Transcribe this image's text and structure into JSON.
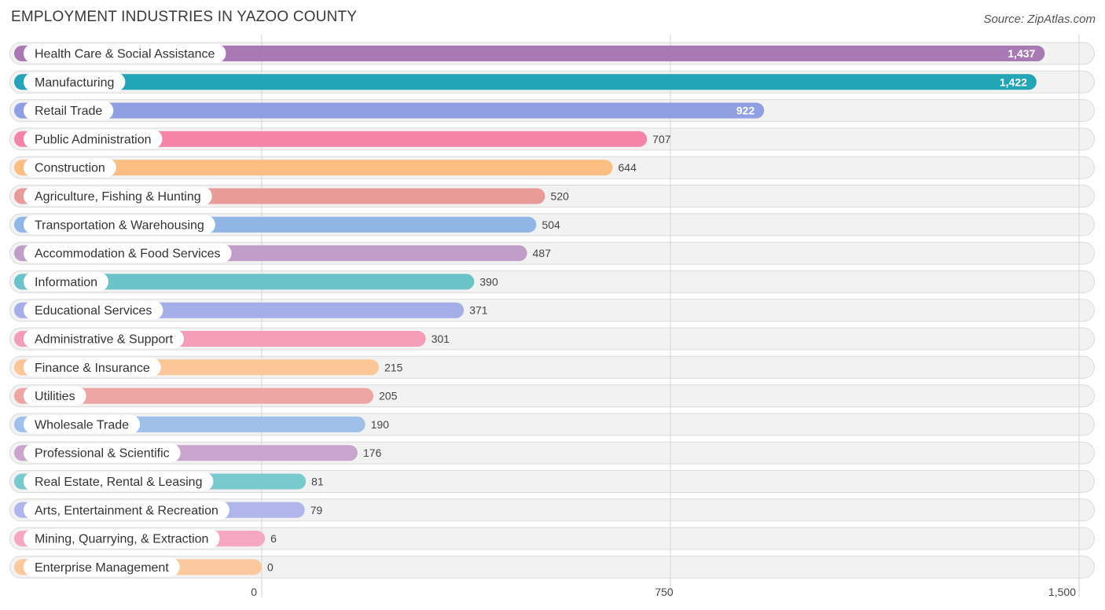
{
  "chart_data": {
    "type": "bar",
    "orientation": "horizontal",
    "title": "EMPLOYMENT INDUSTRIES IN YAZOO COUNTY",
    "source": "Source: ZipAtlas.com",
    "xlim": [
      0,
      1500
    ],
    "xticks": [
      0,
      750,
      1500
    ],
    "xtick_labels": [
      "0",
      "750",
      "1,500"
    ],
    "categories": [
      "Health Care & Social Assistance",
      "Manufacturing",
      "Retail Trade",
      "Public Administration",
      "Construction",
      "Agriculture, Fishing & Hunting",
      "Transportation & Warehousing",
      "Accommodation & Food Services",
      "Information",
      "Educational Services",
      "Administrative & Support",
      "Finance & Insurance",
      "Utilities",
      "Wholesale Trade",
      "Professional & Scientific",
      "Real Estate, Rental & Leasing",
      "Arts, Entertainment & Recreation",
      "Mining, Quarrying, & Extraction",
      "Enterprise Management"
    ],
    "values": [
      1437,
      1422,
      922,
      707,
      644,
      520,
      504,
      487,
      390,
      371,
      301,
      215,
      205,
      190,
      176,
      81,
      79,
      6,
      0
    ],
    "value_labels": [
      "1,437",
      "1,422",
      "922",
      "707",
      "644",
      "520",
      "504",
      "487",
      "390",
      "371",
      "301",
      "215",
      "205",
      "190",
      "176",
      "81",
      "79",
      "6",
      "0"
    ],
    "colors": [
      "#a979b4",
      "#22a5b6",
      "#8f9fe1",
      "#f584a8",
      "#fbbd82",
      "#e99b9a",
      "#90b6e6",
      "#c19dc9",
      "#6ac3c9",
      "#a5aee8",
      "#f59cb8",
      "#fcc697",
      "#eda5a4",
      "#9ec0e9",
      "#c9a4cd",
      "#79cace",
      "#b0b6ec",
      "#f8a7c2",
      "#fcc89e"
    ]
  }
}
